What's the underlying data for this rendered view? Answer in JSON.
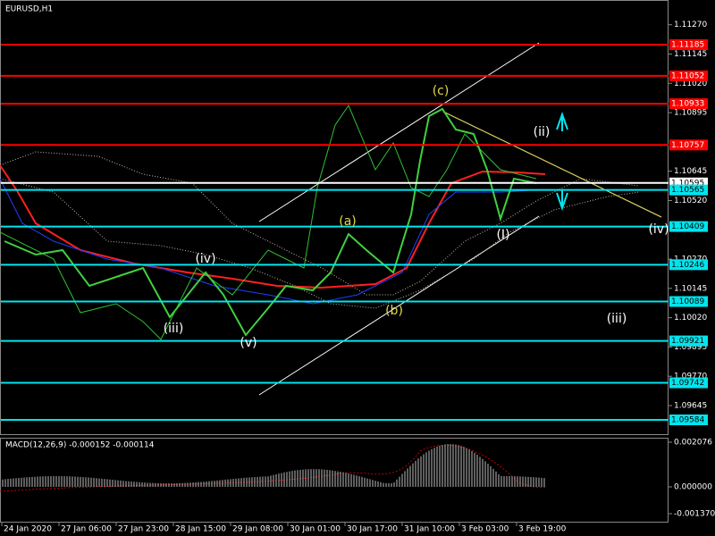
{
  "header": {
    "title": "EURUSD,H1"
  },
  "price_axis": {
    "ticks": [
      {
        "value": 1.1127,
        "label": "1.11270"
      },
      {
        "value": 1.11145,
        "label": "1.11145"
      },
      {
        "value": 1.1102,
        "label": "1.11020"
      },
      {
        "value": 1.10895,
        "label": "1.10895"
      },
      {
        "value": 1.10645,
        "label": "1.10645"
      },
      {
        "value": 1.1052,
        "label": "1.10520"
      },
      {
        "value": 1.1027,
        "label": "1.10270"
      },
      {
        "value": 1.10145,
        "label": "1.10145"
      },
      {
        "value": 1.1002,
        "label": "1.10020"
      },
      {
        "value": 1.09895,
        "label": "1.09895"
      },
      {
        "value": 1.0977,
        "label": "1.09770"
      },
      {
        "value": 1.09645,
        "label": "1.09645"
      }
    ]
  },
  "levels": [
    {
      "value": 1.11185,
      "label": "1.11185",
      "color": "#ff0000"
    },
    {
      "value": 1.11052,
      "label": "1.11052",
      "color": "#ff0000"
    },
    {
      "value": 1.10933,
      "label": "1.10933",
      "color": "#ff0000"
    },
    {
      "value": 1.10757,
      "label": "1.10757",
      "color": "#ff0000"
    },
    {
      "value": 1.10595,
      "label": "1.10595",
      "color": "#ffffff"
    },
    {
      "value": 1.10565,
      "label": "1.10565",
      "color": "#00e5ee"
    },
    {
      "value": 1.10409,
      "label": "1.10409",
      "color": "#00e5ee"
    },
    {
      "value": 1.10246,
      "label": "1.10246",
      "color": "#00e5ee"
    },
    {
      "value": 1.10089,
      "label": "1.10089",
      "color": "#00e5ee"
    },
    {
      "value": 1.09921,
      "label": "1.09921",
      "color": "#00e5ee"
    },
    {
      "value": 1.09742,
      "label": "1.09742",
      "color": "#00e5ee"
    },
    {
      "value": 1.09584,
      "label": "1.09584",
      "color": "#00e5ee"
    }
  ],
  "wave_labels": [
    {
      "text": "(c)",
      "color": "#e6d84a"
    },
    {
      "text": "(ii)",
      "color": "#ffffff"
    },
    {
      "text": "(a)",
      "color": "#e6d84a"
    },
    {
      "text": "(iv)",
      "color": "#ffffff"
    },
    {
      "text": "(iii)",
      "color": "#ffffff"
    },
    {
      "text": "(v)",
      "color": "#ffffff"
    },
    {
      "text": "(b)",
      "color": "#e6d84a"
    },
    {
      "text": "(I)",
      "color": "#ffffff"
    },
    {
      "text": "(iv)",
      "color": "#ffffff"
    },
    {
      "text": "(iii)",
      "color": "#ffffff"
    }
  ],
  "time_axis": [
    "24 Jan 2020",
    "27 Jan 06:00",
    "27 Jan 23:00",
    "28 Jan 15:00",
    "29 Jan 08:00",
    "30 Jan 01:00",
    "30 Jan 17:00",
    "31 Jan 10:00",
    "3 Feb 03:00",
    "3 Feb 19:00"
  ],
  "macd": {
    "label": "MACD(12,26,9) -0.000152 -0.000114",
    "ticks": [
      "0.002076",
      "0.000000",
      "-0.001370"
    ]
  }
}
